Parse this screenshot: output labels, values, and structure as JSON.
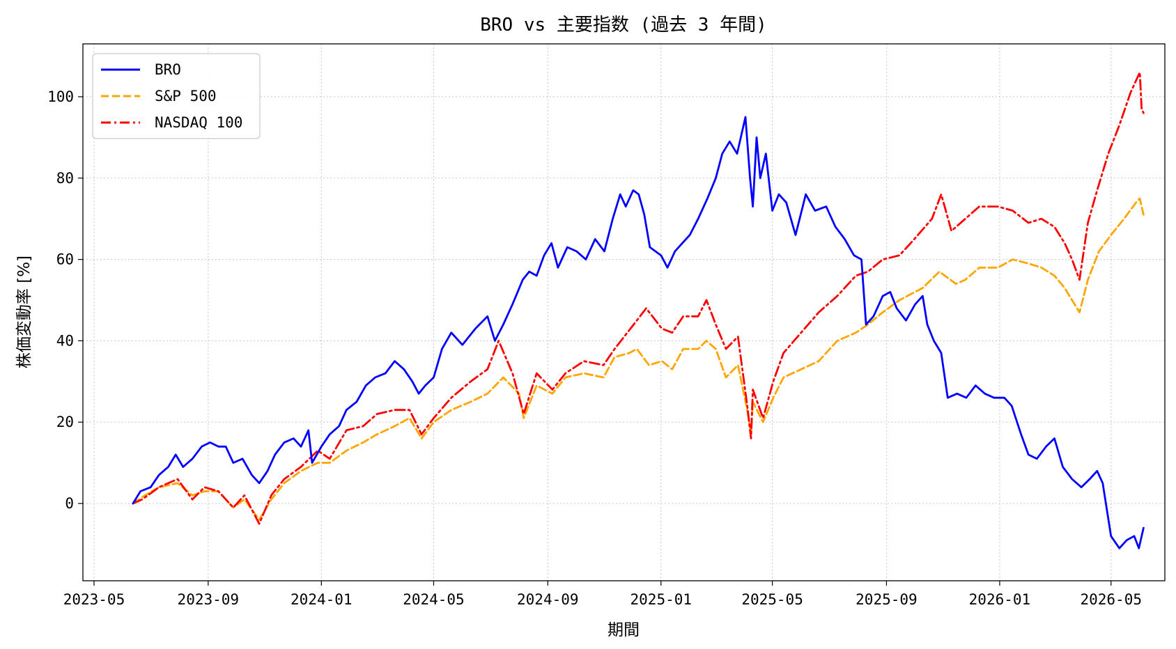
{
  "chart_data": {
    "type": "line",
    "title": "BRO vs 主要指数 (過去 3 年間)",
    "xlabel": "期間",
    "ylabel": "株価変動率 [%]",
    "x_ticks": [
      "2023-05",
      "2023-09",
      "2024-01",
      "2024-05",
      "2024-09",
      "2025-01",
      "2025-05",
      "2025-09",
      "2026-01",
      "2026-05"
    ],
    "y_ticks": [
      0,
      20,
      40,
      60,
      80,
      100
    ],
    "xlim": [
      "2023-04-19",
      "2026-06-28"
    ],
    "ylim": [
      -19,
      113
    ],
    "grid": true,
    "legend_position": "top-left",
    "colors": {
      "BRO": "#0000ff",
      "S&P 500": "#ffa500",
      "NASDAQ 100": "#ff0000"
    },
    "series": [
      {
        "name": "BRO",
        "style": "solid",
        "points": [
          [
            "2023-06-12",
            0
          ],
          [
            "2023-06-20",
            3
          ],
          [
            "2023-07-01",
            4
          ],
          [
            "2023-07-10",
            7
          ],
          [
            "2023-07-20",
            9
          ],
          [
            "2023-07-28",
            12
          ],
          [
            "2023-08-05",
            9
          ],
          [
            "2023-08-15",
            11
          ],
          [
            "2023-08-25",
            14
          ],
          [
            "2023-09-03",
            15
          ],
          [
            "2023-09-12",
            14
          ],
          [
            "2023-09-20",
            14
          ],
          [
            "2023-09-28",
            10
          ],
          [
            "2023-10-08",
            11
          ],
          [
            "2023-10-18",
            7
          ],
          [
            "2023-10-26",
            5
          ],
          [
            "2023-11-04",
            8
          ],
          [
            "2023-11-12",
            12
          ],
          [
            "2023-11-22",
            15
          ],
          [
            "2023-12-02",
            16
          ],
          [
            "2023-12-10",
            14
          ],
          [
            "2023-12-18",
            18
          ],
          [
            "2023-12-22",
            10
          ],
          [
            "2024-01-01",
            14
          ],
          [
            "2024-01-10",
            17
          ],
          [
            "2024-01-20",
            19
          ],
          [
            "2024-01-28",
            23
          ],
          [
            "2024-02-08",
            25
          ],
          [
            "2024-02-18",
            29
          ],
          [
            "2024-02-28",
            31
          ],
          [
            "2024-03-10",
            32
          ],
          [
            "2024-03-20",
            35
          ],
          [
            "2024-03-30",
            33
          ],
          [
            "2024-04-08",
            30
          ],
          [
            "2024-04-15",
            27
          ],
          [
            "2024-04-22",
            29
          ],
          [
            "2024-05-01",
            31
          ],
          [
            "2024-05-10",
            38
          ],
          [
            "2024-05-20",
            42
          ],
          [
            "2024-06-01",
            39
          ],
          [
            "2024-06-15",
            43
          ],
          [
            "2024-06-28",
            46
          ],
          [
            "2024-07-06",
            40
          ],
          [
            "2024-07-15",
            44
          ],
          [
            "2024-07-25",
            49
          ],
          [
            "2024-08-05",
            55
          ],
          [
            "2024-08-12",
            57
          ],
          [
            "2024-08-20",
            56
          ],
          [
            "2024-08-28",
            61
          ],
          [
            "2024-09-05",
            64
          ],
          [
            "2024-09-12",
            58
          ],
          [
            "2024-09-22",
            63
          ],
          [
            "2024-10-02",
            62
          ],
          [
            "2024-10-12",
            60
          ],
          [
            "2024-10-22",
            65
          ],
          [
            "2024-11-01",
            62
          ],
          [
            "2024-11-10",
            70
          ],
          [
            "2024-11-18",
            76
          ],
          [
            "2024-11-24",
            73
          ],
          [
            "2024-12-02",
            77
          ],
          [
            "2024-12-08",
            76
          ],
          [
            "2024-12-14",
            71
          ],
          [
            "2024-12-20",
            63
          ],
          [
            "2025-01-01",
            61
          ],
          [
            "2025-01-08",
            58
          ],
          [
            "2025-01-16",
            62
          ],
          [
            "2025-01-24",
            64
          ],
          [
            "2025-02-01",
            66
          ],
          [
            "2025-02-10",
            70
          ],
          [
            "2025-02-20",
            75
          ],
          [
            "2025-03-01",
            80
          ],
          [
            "2025-03-08",
            86
          ],
          [
            "2025-03-16",
            89
          ],
          [
            "2025-03-24",
            86
          ],
          [
            "2025-04-02",
            95
          ],
          [
            "2025-04-07",
            80
          ],
          [
            "2025-04-10",
            73
          ],
          [
            "2025-04-14",
            90
          ],
          [
            "2025-04-18",
            80
          ],
          [
            "2025-04-24",
            86
          ],
          [
            "2025-05-01",
            72
          ],
          [
            "2025-05-08",
            76
          ],
          [
            "2025-05-16",
            74
          ],
          [
            "2025-05-26",
            66
          ],
          [
            "2025-06-06",
            76
          ],
          [
            "2025-06-16",
            72
          ],
          [
            "2025-06-28",
            73
          ],
          [
            "2025-07-08",
            68
          ],
          [
            "2025-07-18",
            65
          ],
          [
            "2025-07-28",
            61
          ],
          [
            "2025-08-05",
            60
          ],
          [
            "2025-08-10",
            44
          ],
          [
            "2025-08-18",
            46
          ],
          [
            "2025-08-28",
            51
          ],
          [
            "2025-09-05",
            52
          ],
          [
            "2025-09-12",
            48
          ],
          [
            "2025-09-22",
            45
          ],
          [
            "2025-10-02",
            49
          ],
          [
            "2025-10-10",
            51
          ],
          [
            "2025-10-15",
            44
          ],
          [
            "2025-10-22",
            40
          ],
          [
            "2025-10-30",
            37
          ],
          [
            "2025-11-06",
            26
          ],
          [
            "2025-11-16",
            27
          ],
          [
            "2025-11-26",
            26
          ],
          [
            "2025-12-06",
            29
          ],
          [
            "2025-12-16",
            27
          ],
          [
            "2025-12-26",
            26
          ],
          [
            "2026-01-06",
            26
          ],
          [
            "2026-01-14",
            24
          ],
          [
            "2026-01-24",
            17
          ],
          [
            "2026-02-01",
            12
          ],
          [
            "2026-02-10",
            11
          ],
          [
            "2026-02-20",
            14
          ],
          [
            "2026-03-01",
            16
          ],
          [
            "2026-03-10",
            9
          ],
          [
            "2026-03-20",
            6
          ],
          [
            "2026-03-30",
            4
          ],
          [
            "2026-04-08",
            6
          ],
          [
            "2026-04-16",
            8
          ],
          [
            "2026-04-22",
            5
          ],
          [
            "2026-05-01",
            -8
          ],
          [
            "2026-05-10",
            -11
          ],
          [
            "2026-05-18",
            -9
          ],
          [
            "2026-05-26",
            -8
          ],
          [
            "2026-05-31",
            -11
          ],
          [
            "2026-06-05",
            -6
          ]
        ]
      },
      {
        "name": "S&P 500",
        "style": "dashed",
        "points": [
          [
            "2023-06-12",
            0
          ],
          [
            "2023-06-25",
            2
          ],
          [
            "2023-07-10",
            4
          ],
          [
            "2023-07-30",
            5
          ],
          [
            "2023-08-15",
            2
          ],
          [
            "2023-08-28",
            3
          ],
          [
            "2023-09-12",
            3
          ],
          [
            "2023-09-28",
            -1
          ],
          [
            "2023-10-10",
            1
          ],
          [
            "2023-10-26",
            -4
          ],
          [
            "2023-11-08",
            1
          ],
          [
            "2023-11-22",
            5
          ],
          [
            "2023-12-10",
            8
          ],
          [
            "2023-12-28",
            10
          ],
          [
            "2024-01-10",
            10
          ],
          [
            "2024-01-28",
            13
          ],
          [
            "2024-02-15",
            15
          ],
          [
            "2024-03-01",
            17
          ],
          [
            "2024-03-20",
            19
          ],
          [
            "2024-04-05",
            21
          ],
          [
            "2024-04-18",
            16
          ],
          [
            "2024-05-01",
            20
          ],
          [
            "2024-05-20",
            23
          ],
          [
            "2024-06-10",
            25
          ],
          [
            "2024-06-28",
            27
          ],
          [
            "2024-07-15",
            31
          ],
          [
            "2024-08-01",
            27
          ],
          [
            "2024-08-06",
            21
          ],
          [
            "2024-08-20",
            29
          ],
          [
            "2024-09-06",
            27
          ],
          [
            "2024-09-20",
            31
          ],
          [
            "2024-10-10",
            32
          ],
          [
            "2024-10-31",
            31
          ],
          [
            "2024-11-12",
            36
          ],
          [
            "2024-11-28",
            37
          ],
          [
            "2024-12-06",
            38
          ],
          [
            "2024-12-19",
            34
          ],
          [
            "2025-01-02",
            35
          ],
          [
            "2025-01-13",
            33
          ],
          [
            "2025-01-25",
            38
          ],
          [
            "2025-02-10",
            38
          ],
          [
            "2025-02-19",
            40
          ],
          [
            "2025-03-01",
            38
          ],
          [
            "2025-03-12",
            31
          ],
          [
            "2025-03-25",
            34
          ],
          [
            "2025-04-04",
            23
          ],
          [
            "2025-04-08",
            17
          ],
          [
            "2025-04-10",
            25
          ],
          [
            "2025-04-21",
            20
          ],
          [
            "2025-05-02",
            26
          ],
          [
            "2025-05-13",
            31
          ],
          [
            "2025-06-01",
            33
          ],
          [
            "2025-06-20",
            35
          ],
          [
            "2025-07-10",
            40
          ],
          [
            "2025-07-30",
            42
          ],
          [
            "2025-08-12",
            44
          ],
          [
            "2025-08-28",
            47
          ],
          [
            "2025-09-15",
            50
          ],
          [
            "2025-10-10",
            53
          ],
          [
            "2025-10-28",
            57
          ],
          [
            "2025-11-15",
            54
          ],
          [
            "2025-11-25",
            55
          ],
          [
            "2025-12-10",
            58
          ],
          [
            "2025-12-30",
            58
          ],
          [
            "2026-01-15",
            60
          ],
          [
            "2026-02-01",
            59
          ],
          [
            "2026-02-15",
            58
          ],
          [
            "2026-03-01",
            56
          ],
          [
            "2026-03-12",
            53
          ],
          [
            "2026-03-20",
            50
          ],
          [
            "2026-03-28",
            47
          ],
          [
            "2026-04-06",
            55
          ],
          [
            "2026-04-18",
            62
          ],
          [
            "2026-05-01",
            66
          ],
          [
            "2026-05-15",
            70
          ],
          [
            "2026-05-28",
            74
          ],
          [
            "2026-06-01",
            75
          ],
          [
            "2026-06-05",
            71
          ]
        ]
      },
      {
        "name": "NASDAQ 100",
        "style": "dashdot",
        "points": [
          [
            "2023-06-12",
            0
          ],
          [
            "2023-06-22",
            1
          ],
          [
            "2023-07-10",
            4
          ],
          [
            "2023-07-30",
            6
          ],
          [
            "2023-08-15",
            1
          ],
          [
            "2023-08-28",
            4
          ],
          [
            "2023-09-12",
            3
          ],
          [
            "2023-09-28",
            -1
          ],
          [
            "2023-10-10",
            2
          ],
          [
            "2023-10-26",
            -5
          ],
          [
            "2023-11-08",
            2
          ],
          [
            "2023-11-22",
            6
          ],
          [
            "2023-12-10",
            9
          ],
          [
            "2023-12-28",
            13
          ],
          [
            "2024-01-10",
            11
          ],
          [
            "2024-01-28",
            18
          ],
          [
            "2024-02-15",
            19
          ],
          [
            "2024-03-01",
            22
          ],
          [
            "2024-03-20",
            23
          ],
          [
            "2024-04-05",
            23
          ],
          [
            "2024-04-18",
            17
          ],
          [
            "2024-05-01",
            21
          ],
          [
            "2024-05-20",
            26
          ],
          [
            "2024-06-10",
            30
          ],
          [
            "2024-06-28",
            33
          ],
          [
            "2024-07-10",
            40
          ],
          [
            "2024-07-25",
            32
          ],
          [
            "2024-08-06",
            22
          ],
          [
            "2024-08-20",
            32
          ],
          [
            "2024-09-06",
            28
          ],
          [
            "2024-09-20",
            32
          ],
          [
            "2024-10-10",
            35
          ],
          [
            "2024-10-31",
            34
          ],
          [
            "2024-11-12",
            38
          ],
          [
            "2024-12-06",
            45
          ],
          [
            "2024-12-16",
            48
          ],
          [
            "2025-01-02",
            43
          ],
          [
            "2025-01-13",
            42
          ],
          [
            "2025-01-25",
            46
          ],
          [
            "2025-02-10",
            46
          ],
          [
            "2025-02-19",
            50
          ],
          [
            "2025-03-01",
            44
          ],
          [
            "2025-03-12",
            38
          ],
          [
            "2025-03-25",
            41
          ],
          [
            "2025-04-04",
            24
          ],
          [
            "2025-04-08",
            16
          ],
          [
            "2025-04-10",
            28
          ],
          [
            "2025-04-21",
            21
          ],
          [
            "2025-05-02",
            30
          ],
          [
            "2025-05-13",
            37
          ],
          [
            "2025-06-01",
            42
          ],
          [
            "2025-06-20",
            47
          ],
          [
            "2025-07-10",
            51
          ],
          [
            "2025-07-30",
            56
          ],
          [
            "2025-08-12",
            57
          ],
          [
            "2025-08-28",
            60
          ],
          [
            "2025-09-15",
            61
          ],
          [
            "2025-10-01",
            65
          ],
          [
            "2025-10-20",
            70
          ],
          [
            "2025-10-30",
            76
          ],
          [
            "2025-11-10",
            67
          ],
          [
            "2025-11-25",
            70
          ],
          [
            "2025-12-10",
            73
          ],
          [
            "2025-12-30",
            73
          ],
          [
            "2026-01-15",
            72
          ],
          [
            "2026-02-01",
            69
          ],
          [
            "2026-02-15",
            70
          ],
          [
            "2026-03-01",
            68
          ],
          [
            "2026-03-12",
            64
          ],
          [
            "2026-03-20",
            60
          ],
          [
            "2026-03-28",
            55
          ],
          [
            "2026-04-06",
            69
          ],
          [
            "2026-04-16",
            77
          ],
          [
            "2026-04-28",
            86
          ],
          [
            "2026-05-10",
            93
          ],
          [
            "2026-05-22",
            101
          ],
          [
            "2026-06-01",
            106
          ],
          [
            "2026-06-03",
            97
          ],
          [
            "2026-06-05",
            96
          ]
        ]
      }
    ]
  }
}
